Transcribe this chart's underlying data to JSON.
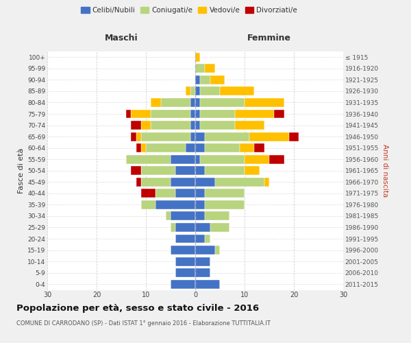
{
  "age_groups": [
    "0-4",
    "5-9",
    "10-14",
    "15-19",
    "20-24",
    "25-29",
    "30-34",
    "35-39",
    "40-44",
    "45-49",
    "50-54",
    "55-59",
    "60-64",
    "65-69",
    "70-74",
    "75-79",
    "80-84",
    "85-89",
    "90-94",
    "95-99",
    "100+"
  ],
  "birth_years": [
    "2011-2015",
    "2006-2010",
    "2001-2005",
    "1996-2000",
    "1991-1995",
    "1986-1990",
    "1981-1985",
    "1976-1980",
    "1971-1975",
    "1966-1970",
    "1961-1965",
    "1956-1960",
    "1951-1955",
    "1946-1950",
    "1941-1945",
    "1936-1940",
    "1931-1935",
    "1926-1930",
    "1921-1925",
    "1916-1920",
    "≤ 1915"
  ],
  "colors": {
    "celibe": "#4472c4",
    "coniugato": "#b8d47e",
    "vedovo": "#ffc000",
    "divorziato": "#c00000"
  },
  "maschi": {
    "celibe": [
      5,
      4,
      4,
      5,
      4,
      4,
      5,
      8,
      4,
      5,
      4,
      5,
      2,
      1,
      1,
      1,
      1,
      0,
      0,
      0,
      0
    ],
    "coniugato": [
      0,
      0,
      0,
      0,
      0,
      1,
      1,
      3,
      4,
      6,
      7,
      9,
      8,
      10,
      8,
      8,
      6,
      1,
      0,
      0,
      0
    ],
    "vedovo": [
      0,
      0,
      0,
      0,
      0,
      0,
      0,
      0,
      0,
      0,
      0,
      0,
      1,
      1,
      2,
      4,
      2,
      1,
      0,
      0,
      0
    ],
    "divorziato": [
      0,
      0,
      0,
      0,
      0,
      0,
      0,
      0,
      3,
      1,
      2,
      0,
      1,
      1,
      2,
      1,
      0,
      0,
      0,
      0,
      0
    ]
  },
  "femmine": {
    "celibe": [
      5,
      3,
      3,
      4,
      2,
      3,
      2,
      2,
      2,
      4,
      2,
      1,
      2,
      2,
      1,
      1,
      1,
      1,
      1,
      0,
      0
    ],
    "coniugato": [
      0,
      0,
      0,
      1,
      1,
      4,
      5,
      8,
      8,
      10,
      8,
      9,
      7,
      9,
      7,
      7,
      9,
      4,
      2,
      2,
      0
    ],
    "vedovo": [
      0,
      0,
      0,
      0,
      0,
      0,
      0,
      0,
      0,
      1,
      3,
      5,
      3,
      8,
      6,
      8,
      8,
      7,
      3,
      2,
      1
    ],
    "divorziato": [
      0,
      0,
      0,
      0,
      0,
      0,
      0,
      0,
      0,
      0,
      0,
      3,
      2,
      2,
      0,
      2,
      0,
      0,
      0,
      0,
      0
    ]
  },
  "title": "Popolazione per età, sesso e stato civile - 2016",
  "subtitle": "COMUNE DI CARRODANO (SP) - Dati ISTAT 1° gennaio 2016 - Elaborazione TUTTITALIA.IT",
  "xlabel_maschi": "Maschi",
  "xlabel_femmine": "Femmine",
  "ylabel_left": "Fasce di età",
  "ylabel_right": "Anni di nascita",
  "xlim": 30,
  "bg_color": "#f0f0f0",
  "plot_bg": "#ffffff",
  "grid_color": "#cccccc"
}
